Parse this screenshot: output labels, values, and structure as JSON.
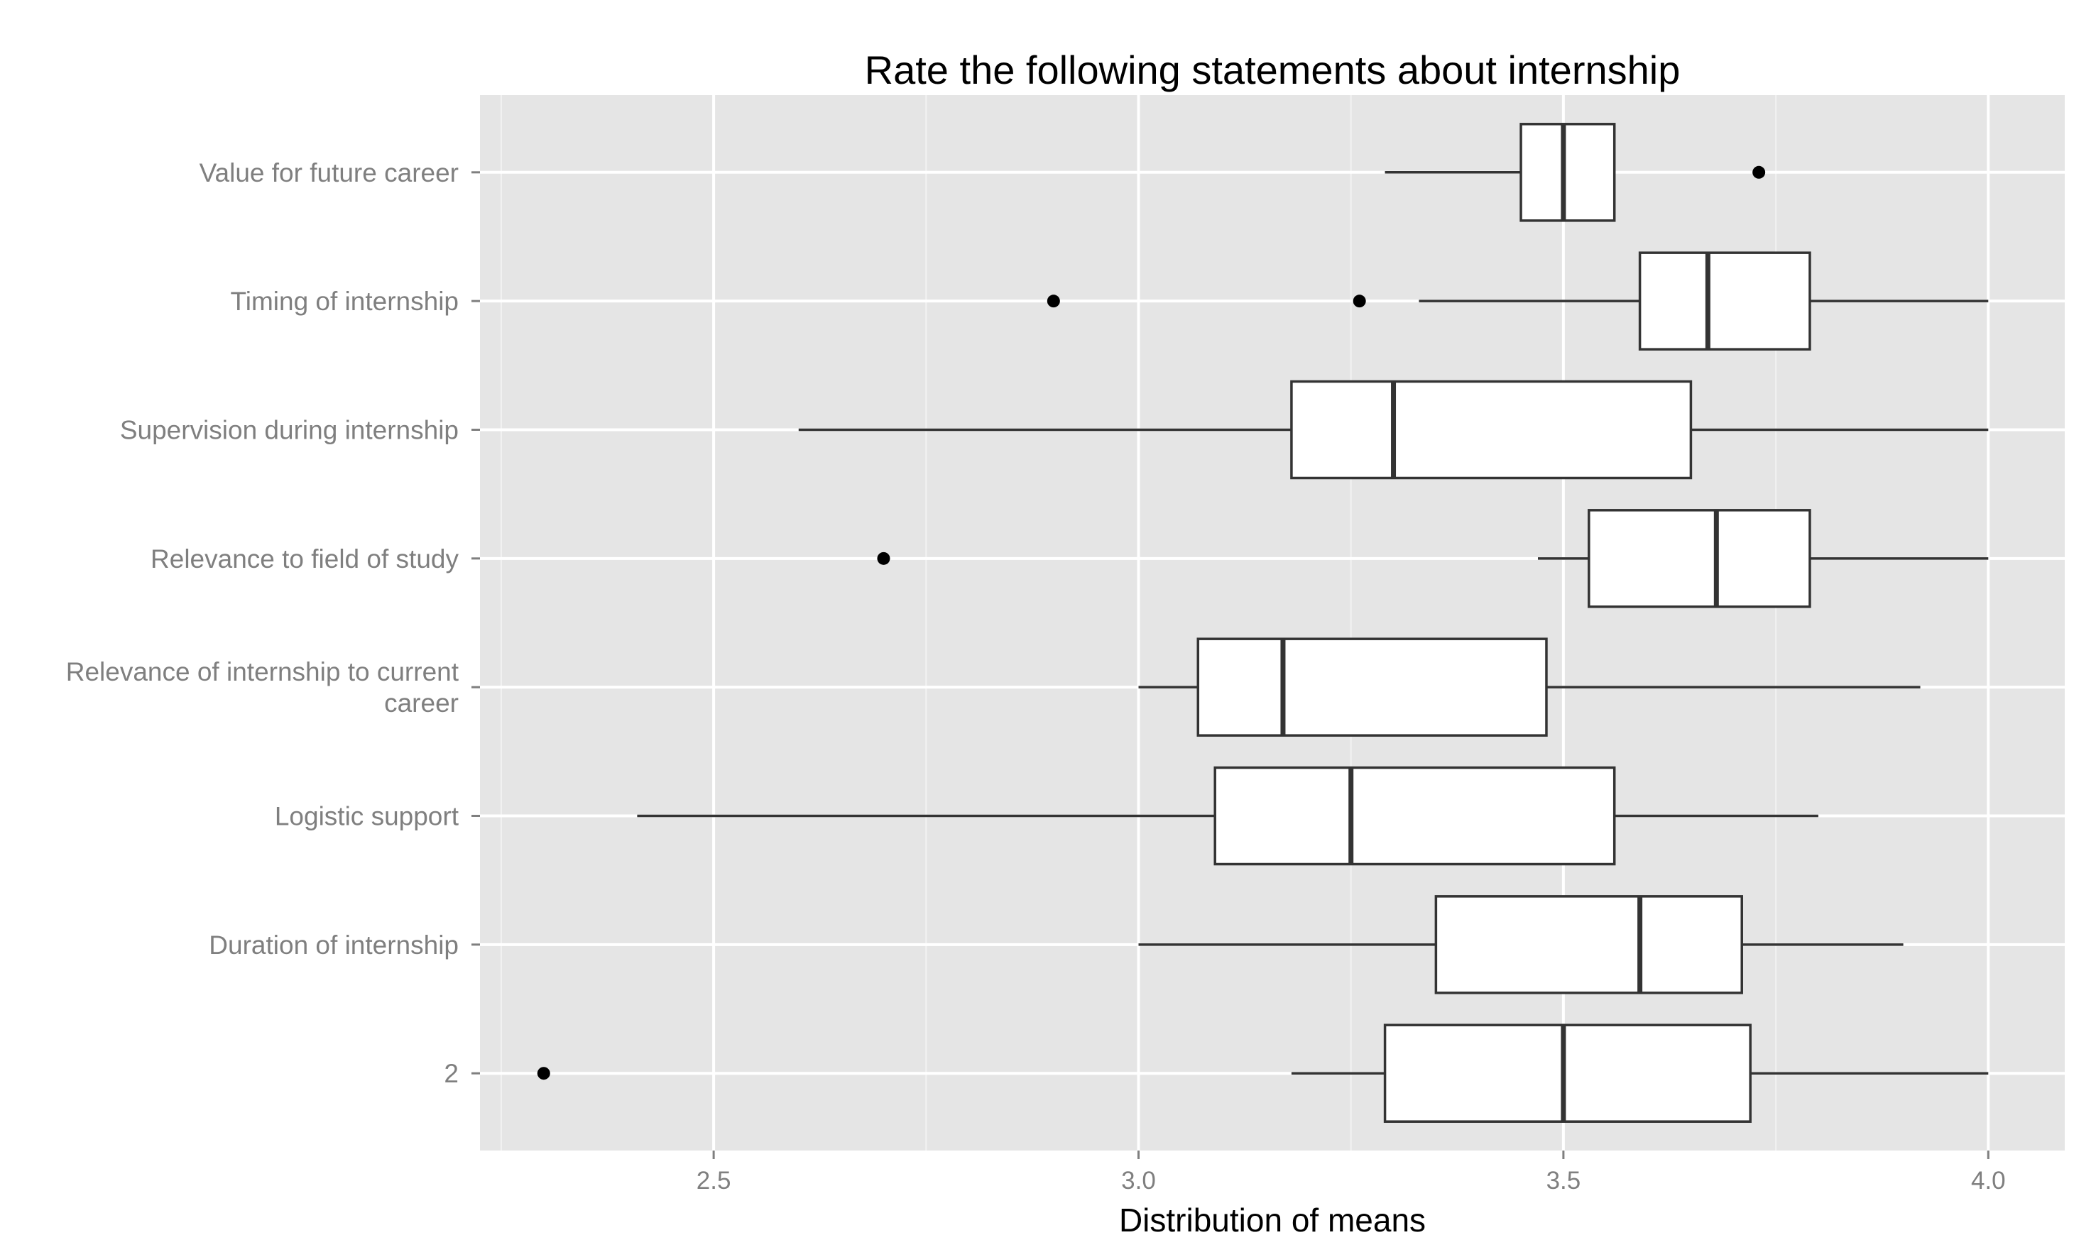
{
  "chart_data": {
    "type": "boxplot",
    "orientation": "horizontal",
    "title": "Rate the following statements about internship",
    "xlabel": "Distribution of means",
    "ylabel": "",
    "xlim": [
      2.225,
      4.09
    ],
    "x_ticks": [
      2.5,
      3.0,
      3.5,
      4.0
    ],
    "x_tick_labels": [
      "2.5",
      "3.0",
      "3.5",
      "4.0"
    ],
    "grid": true,
    "legend": "none",
    "colors": {
      "panel_background": "#e5e5e5",
      "grid_major": "#ffffff",
      "box_fill": "#ffffff",
      "box_stroke": "#333333",
      "outlier": "#000000"
    },
    "categories": [
      "Value for future career",
      "Timing of internship",
      "Supervision during internship",
      "Relevance to field of study",
      "Relevance of internship to current career",
      "Logistic support",
      "Duration of internship",
      "2"
    ],
    "category_lines": [
      [
        "Value for future career"
      ],
      [
        "Timing of internship"
      ],
      [
        "Supervision during internship"
      ],
      [
        "Relevance to field of study"
      ],
      [
        "Relevance of internship to current",
        "career"
      ],
      [
        "Logistic support"
      ],
      [
        "Duration of internship"
      ],
      [
        "2"
      ]
    ],
    "boxes": [
      {
        "category": "Value for future career",
        "whisker_low": 3.29,
        "q1": 3.45,
        "median": 3.5,
        "q3": 3.56,
        "whisker_high": 3.56,
        "outliers": [
          3.73
        ]
      },
      {
        "category": "Timing of internship",
        "whisker_low": 3.33,
        "q1": 3.59,
        "median": 3.67,
        "q3": 3.79,
        "whisker_high": 4.0,
        "outliers": [
          2.9,
          3.26
        ]
      },
      {
        "category": "Supervision during internship",
        "whisker_low": 2.6,
        "q1": 3.18,
        "median": 3.3,
        "q3": 3.65,
        "whisker_high": 4.0,
        "outliers": []
      },
      {
        "category": "Relevance to field of study",
        "whisker_low": 3.47,
        "q1": 3.53,
        "median": 3.68,
        "q3": 3.79,
        "whisker_high": 4.0,
        "outliers": [
          2.7
        ]
      },
      {
        "category": "Relevance of internship to current career",
        "whisker_low": 3.0,
        "q1": 3.07,
        "median": 3.17,
        "q3": 3.48,
        "whisker_high": 3.92,
        "outliers": []
      },
      {
        "category": "Logistic support",
        "whisker_low": 2.41,
        "q1": 3.09,
        "median": 3.25,
        "q3": 3.56,
        "whisker_high": 3.8,
        "outliers": []
      },
      {
        "category": "Duration of internship",
        "whisker_low": 3.0,
        "q1": 3.35,
        "median": 3.59,
        "q3": 3.71,
        "whisker_high": 3.9,
        "outliers": []
      },
      {
        "category": "2",
        "whisker_low": 3.18,
        "q1": 3.29,
        "median": 3.5,
        "q3": 3.72,
        "whisker_high": 4.0,
        "outliers": [
          2.3
        ]
      }
    ]
  }
}
